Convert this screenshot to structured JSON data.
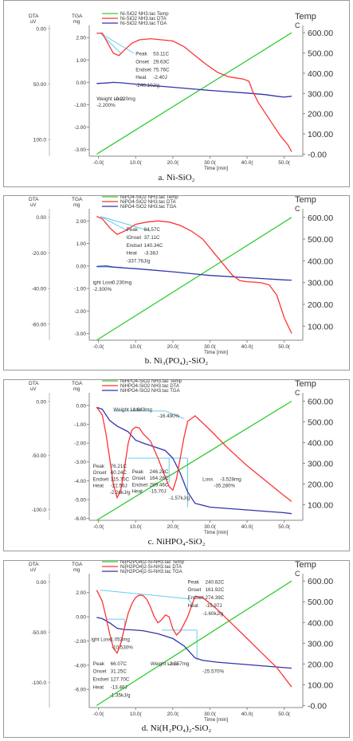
{
  "chart_data": [
    {
      "type": "line",
      "caption": "a. Ni-SiO₂",
      "labels": {
        "dta": "DTA",
        "dta_unit": "uV",
        "tga": "TGA",
        "tga_unit": "mg",
        "temp": "Temp",
        "temp_unit": "C",
        "xlabel": "Time [min]"
      },
      "legend": [
        "Ni-SiO2 NH3.tac Temp",
        "Ni-SiO2 NH3.tac DTA",
        "Ni-SiO2 NH3.tac TGA"
      ],
      "colors": {
        "temp": "#33cc33",
        "dta": "#ff3333",
        "tga": "#3333aa",
        "annot": "#66ccee"
      },
      "x_ticks": [
        "-0.0(",
        "10.0(",
        "20.0(",
        "30.0(",
        "40.0(",
        "50.0("
      ],
      "x_range": [
        -2.5,
        55
      ],
      "tga_ticks": [
        "2.00",
        "1.00",
        "0.00",
        "-1.00",
        "-2.00",
        "-3.00"
      ],
      "tga_range": [
        -3.3,
        2.4
      ],
      "dta_ticks": [
        "0.00",
        "50.00",
        "100.0"
      ],
      "dta_range": [
        0,
        115
      ],
      "temp_ticks": [
        "600.00",
        "500.00",
        "400.00",
        "300.00",
        "200.00",
        "100.00",
        "-0.00"
      ],
      "temp_range": [
        -10,
        620
      ],
      "temp": {
        "x": [
          -0.5,
          52
        ],
        "y": [
          0,
          600
        ]
      },
      "dta": {
        "x": [
          -0.5,
          1,
          2.5,
          4,
          5.5,
          7,
          9,
          11,
          14,
          17,
          20,
          23,
          26,
          29,
          32,
          35,
          37,
          39,
          40.5,
          41.5,
          43,
          45,
          47,
          49,
          51,
          52
        ],
        "y": [
          2.2,
          2.2,
          1.75,
          1.3,
          1.2,
          1.45,
          1.75,
          1.9,
          1.95,
          1.9,
          1.85,
          1.6,
          1.2,
          0.8,
          0.45,
          0.25,
          0.2,
          0.15,
          0.05,
          -0.4,
          -0.9,
          -1.4,
          -1.9,
          -2.4,
          -2.8,
          -3.1
        ]
      },
      "tga": {
        "x": [
          -0.5,
          2,
          4,
          6,
          10,
          20,
          30,
          40,
          45,
          48,
          50,
          52
        ],
        "y": [
          -0.05,
          -0.03,
          0.0,
          -0.02,
          -0.08,
          -0.22,
          -0.36,
          -0.48,
          -0.55,
          -0.62,
          -0.66,
          -0.62
        ]
      },
      "annot_lines": [
        {
          "x1": 0.5,
          "y1": 2.2,
          "x2": 6,
          "y2": 1.3
        },
        {
          "x1": 0.5,
          "y1": 2.2,
          "x2": 9.5,
          "y2": 1.3
        }
      ],
      "annotations": [
        {
          "label": "Peak",
          "value": "53.11C",
          "x": 10,
          "y": 1.2
        },
        {
          "label": "Onset",
          "value": "29.63C",
          "x": 10,
          "y": 0.85
        },
        {
          "label": "Endset",
          "value": "75.76C",
          "x": 10,
          "y": 0.5
        },
        {
          "label": "Heat",
          "value": "-2.40J",
          "x": 10,
          "y": 0.15
        },
        {
          "label": "",
          "value": "-240.10J/g",
          "x": 10,
          "y": -0.2
        },
        {
          "label": "Weight Loss",
          "value": "-0.220mg",
          "x": -0.5,
          "y": -0.8
        },
        {
          "label": "",
          "value": "-2.200%",
          "x": -0.5,
          "y": -1.1
        }
      ]
    },
    {
      "type": "line",
      "caption": "b. Ni₃(PO₄)₂-SiO₂",
      "labels": {
        "dta": "DTA",
        "dta_unit": "uV",
        "tga": "TGA",
        "tga_unit": "mg",
        "temp": "Temp",
        "temp_unit": "C",
        "xlabel": "Time [min]"
      },
      "legend": [
        "NiPO4-SiO2 NH3.tac Temp",
        "NiPO4-SiO2 NH3.tac DTA",
        "NiPO4-SiO2 NH3.tac TGA"
      ],
      "colors": {
        "temp": "#33cc33",
        "dta": "#ff3333",
        "tga": "#3333aa",
        "annot": "#66ccee"
      },
      "x_ticks": [
        "-0.0(",
        "10.0(",
        "20.0(",
        "30.0(",
        "40.0(",
        "50.0("
      ],
      "x_range": [
        -2.5,
        55
      ],
      "tga_ticks": [
        "2.00",
        "1.00",
        "0.00",
        "-1.00",
        "-2.00",
        "-3.00"
      ],
      "tga_range": [
        -3.3,
        2.4
      ],
      "dta_ticks": [
        "0.00",
        "-20.00",
        "-40.00",
        "-60.00"
      ],
      "dta_range": [
        -69,
        3
      ],
      "temp_ticks": [
        "600.00",
        "500.00",
        "400.00",
        "300.00",
        "200.00",
        "100.00"
      ],
      "temp_range": [
        35,
        625
      ],
      "temp": {
        "x": [
          -0.5,
          52
        ],
        "y": [
          35,
          600
        ]
      },
      "dta": {
        "x": [
          -0.5,
          1,
          3,
          5,
          7,
          10,
          13,
          16,
          19,
          22,
          25,
          28,
          31,
          34,
          36,
          38,
          40,
          42,
          44,
          46,
          48,
          50,
          52
        ],
        "y": [
          2.2,
          2.1,
          1.7,
          1.4,
          1.55,
          1.85,
          1.95,
          2.0,
          1.95,
          1.8,
          1.55,
          1.2,
          0.6,
          0.0,
          -0.4,
          -0.65,
          -0.7,
          -0.72,
          -0.75,
          -0.85,
          -1.3,
          -2.3,
          -3.0
        ]
      },
      "tga": {
        "x": [
          -0.5,
          2,
          4,
          6,
          10,
          20,
          30,
          40,
          45,
          50,
          52
        ],
        "y": [
          -0.02,
          0.0,
          -0.05,
          -0.08,
          -0.12,
          -0.26,
          -0.42,
          -0.52,
          -0.57,
          -0.62,
          -0.63
        ]
      },
      "annot_lines": [
        {
          "x1": 0.5,
          "y1": 2.2,
          "x2": 8,
          "y2": 1.55
        },
        {
          "x1": 0.5,
          "y1": 2.2,
          "x2": 14,
          "y2": 1.55
        },
        {
          "x1": -0.5,
          "y1": -0.05,
          "x2": 6.5,
          "y2": -0.05
        }
      ],
      "annotations": [
        {
          "label": "Peak",
          "value": "84.57C",
          "x": 7.5,
          "y": 1.55
        },
        {
          "label": "IOnset",
          "value": "37.11C",
          "x": 7.5,
          "y": 1.2
        },
        {
          "label": "Endset",
          "value": "140.34C",
          "x": 7.5,
          "y": 0.85
        },
        {
          "label": "Heat",
          "value": "-3.38J",
          "x": 7.5,
          "y": 0.5
        },
        {
          "label": "",
          "value": "-337.76J/g",
          "x": 7.5,
          "y": 0.15
        },
        {
          "label": "ight Loss",
          "value": "-0.230mg",
          "x": -1.5,
          "y": -0.8
        },
        {
          "label": "",
          "value": "-2.300%",
          "x": -1.5,
          "y": -1.1
        }
      ]
    },
    {
      "type": "line",
      "caption": "c. NiHPO₄-SiO₂",
      "labels": {
        "dta": "DTA",
        "dta_unit": "uV",
        "tga": "TGA",
        "tga_unit": "mg",
        "temp": "Temp",
        "temp_unit": "C",
        "xlabel": "Time [min]"
      },
      "legend": [
        "NiHPO4-SiO2 NH3.tac Temp",
        "NiHPO4-SiO2 NH3.tac DTA",
        "NiHPO4-SiO2 NH3.tac TGA"
      ],
      "colors": {
        "temp": "#33cc33",
        "dta": "#ff3333",
        "tga": "#3333aa",
        "annot": "#66ccee"
      },
      "x_ticks": [
        "-0.0(",
        "10.0(",
        "20.0(",
        "30.0(",
        "40.0(",
        "50.0("
      ],
      "x_range": [
        -2.5,
        55
      ],
      "tga_ticks": [
        "0.00",
        "-1.00",
        "-2.00",
        "-3.00",
        "-4.00",
        "-5.00",
        "-6.00"
      ],
      "tga_range": [
        -6.1,
        0.5
      ],
      "dta_ticks": [
        "0.00",
        "-50.00",
        "-100.0"
      ],
      "dta_range": [
        -110,
        5
      ],
      "temp_ticks": [
        "600.00",
        "500.00",
        "400.00",
        "300.00",
        "200.00",
        "100.00"
      ],
      "temp_range": [
        25,
        625
      ],
      "temp": {
        "x": [
          -0.5,
          52
        ],
        "y": [
          25,
          600
        ]
      },
      "dta": {
        "x": [
          -0.5,
          1,
          2,
          3,
          4,
          5,
          6,
          7,
          8,
          9,
          10,
          11,
          12,
          14,
          16,
          18,
          19,
          20,
          21,
          22,
          23,
          24,
          26,
          30,
          35,
          40,
          45,
          50,
          52
        ],
        "y": [
          -0.1,
          -0.5,
          -1.5,
          -2.8,
          -4.2,
          -4.9,
          -4.5,
          -3.3,
          -2.0,
          -1.3,
          -1.15,
          -1.2,
          -1.5,
          -1.9,
          -2.8,
          -3.8,
          -4.3,
          -4.5,
          -3.9,
          -2.8,
          -1.7,
          -0.85,
          -0.55,
          -1.3,
          -2.3,
          -3.2,
          -4.0,
          -4.8,
          -5.1
        ]
      },
      "tga": {
        "x": [
          -0.5,
          1,
          3,
          5,
          7,
          8,
          10,
          12,
          15,
          18,
          20,
          22,
          24,
          26,
          30,
          40,
          50,
          52
        ],
        "y": [
          -0.1,
          -0.2,
          -0.8,
          -1.1,
          -1.3,
          -1.4,
          -1.85,
          -2.0,
          -2.2,
          -2.4,
          -2.8,
          -3.6,
          -4.6,
          -5.2,
          -5.4,
          -5.55,
          -5.7,
          -5.75
        ]
      },
      "annot_lines": [
        {
          "x1": 4,
          "y1": -0.3,
          "x2": 18,
          "y2": -0.3
        },
        {
          "x1": 18,
          "y1": -0.3,
          "x2": 23,
          "y2": -0.7
        },
        {
          "x1": 8,
          "y1": -2.8,
          "x2": 24,
          "y2": -2.8
        },
        {
          "x1": 24,
          "y1": -2.8,
          "x2": 24,
          "y2": -5.4
        },
        {
          "x1": 19,
          "y1": -2.8,
          "x2": 19,
          "y2": -4.1
        }
      ],
      "annotations": [
        {
          "label": "Weight Loss",
          "value": "-1.649mg",
          "x": 4,
          "y": -0.3
        },
        {
          "label": "",
          "value": "-16.490%",
          "x": 16,
          "y": -0.65
        },
        {
          "label": "Peak",
          "value": "76.21C",
          "x": -1.5,
          "y": -3.3
        },
        {
          "label": "Onset",
          "value": "40.24C",
          "x": -1.5,
          "y": -3.65
        },
        {
          "label": "Endset",
          "value": "115.70C",
          "x": -1.5,
          "y": -4.0
        },
        {
          "label": "Heat",
          "value": "-22.56J",
          "x": -1.5,
          "y": -4.35
        },
        {
          "label": "",
          "value": "-2.26kJ/g",
          "x": 3,
          "y": -4.7
        },
        {
          "label": "Peak",
          "value": "246.28C",
          "x": 9,
          "y": -3.6
        },
        {
          "label": "Onset",
          "value": "164.26C",
          "x": 9,
          "y": -3.95
        },
        {
          "label": "Endset",
          "value": "289.46C",
          "x": 9,
          "y": -4.3
        },
        {
          "label": "Heat",
          "value": "-15.70J",
          "x": 9,
          "y": -4.65
        },
        {
          "label": "",
          "value": "-1.57kJ/g",
          "x": 19,
          "y": -5.0
        },
        {
          "label": "Loss",
          "value": "-3.528mg",
          "x": 28,
          "y": -4.0
        },
        {
          "label": "",
          "value": "-35.280%",
          "x": 31,
          "y": -4.35
        }
      ]
    },
    {
      "type": "line",
      "caption": "d. Ni(H₂PO₄)₂-SiO₂",
      "labels": {
        "dta": "DTA",
        "dta_unit": "uV",
        "tga": "TGA",
        "tga_unit": "mg",
        "temp": "Temp",
        "temp_unit": "C",
        "xlabel": "Time [min]"
      },
      "legend": [
        "Ni(H2PO4)2-Si-NH3.tac Temp",
        "Ni(H2PO4)2-Si-NH3.tac DTA",
        "Ni(H2PO4)2-Si-NH3.tac TGA"
      ],
      "colors": {
        "temp": "#33cc33",
        "dta": "#ff3333",
        "tga": "#3333aa",
        "annot": "#66ccee"
      },
      "x_ticks": [
        "-0.0(",
        "10.0(",
        "20.0(",
        "30.0(",
        "40.0(",
        "50.0("
      ],
      "x_range": [
        -2.5,
        55
      ],
      "tga_ticks": [
        "2.00",
        "0.00",
        "-2.00",
        "-4.00",
        "-6.00"
      ],
      "tga_range": [
        -7.5,
        3.3
      ],
      "dta_ticks": [
        "0.00",
        "-50.00",
        "-100.0"
      ],
      "dta_range": [
        -125,
        5
      ],
      "temp_ticks": [
        "600.00",
        "500.00",
        "400.00",
        "300.00",
        "200.00",
        "100.00",
        "-0.00"
      ],
      "temp_range": [
        -10,
        620
      ],
      "temp": {
        "x": [
          -0.5,
          52
        ],
        "y": [
          0,
          600
        ]
      },
      "dta": {
        "x": [
          -0.5,
          1,
          2,
          3,
          4,
          5,
          6,
          7,
          8,
          9,
          10,
          11,
          12,
          13,
          14,
          15,
          16,
          17,
          18,
          19,
          20,
          21,
          22,
          24,
          26,
          28,
          32,
          36,
          40,
          44,
          48,
          52
        ],
        "y": [
          2.2,
          1.3,
          0.0,
          -1.4,
          -2.6,
          -3.0,
          -2.2,
          -0.9,
          0.3,
          1.1,
          1.6,
          1.8,
          1.75,
          1.45,
          0.8,
          0.0,
          -0.5,
          -0.25,
          0.15,
          0.0,
          -1.0,
          -1.5,
          -1.2,
          0.0,
          1.7,
          1.6,
          0.6,
          -0.6,
          -1.8,
          -3.0,
          -4.2,
          -5.8
        ]
      },
      "tga": {
        "x": [
          -0.5,
          1,
          3,
          5,
          7,
          9,
          12,
          16,
          20,
          23,
          26,
          28,
          32,
          40,
          50,
          52
        ],
        "y": [
          -0.05,
          -0.15,
          -0.5,
          -0.95,
          -1.05,
          -1.08,
          -1.15,
          -1.4,
          -1.8,
          -2.4,
          -3.4,
          -3.6,
          -3.75,
          -3.95,
          -4.2,
          -4.25
        ]
      },
      "annot_lines": [
        {
          "x1": 0.5,
          "y1": 2.2,
          "x2": 24,
          "y2": 1.5
        },
        {
          "x1": 24,
          "y1": 1.5,
          "x2": 25.5,
          "y2": 1.0
        },
        {
          "x1": 2,
          "y1": -0.2,
          "x2": 7,
          "y2": -0.2
        },
        {
          "x1": 7,
          "y1": -0.2,
          "x2": 7,
          "y2": -1.1
        },
        {
          "x1": 17,
          "y1": -1.1,
          "x2": 26.5,
          "y2": -1.1
        },
        {
          "x1": 26.5,
          "y1": -1.1,
          "x2": 26.5,
          "y2": -3.6
        }
      ],
      "annotations": [
        {
          "label": "Peak",
          "value": "240.82C",
          "x": 24,
          "y": 2.75
        },
        {
          "label": "Onset",
          "value": "161.92C",
          "x": 24,
          "y": 2.1
        },
        {
          "label": "Endset",
          "value": "274.39C",
          "x": 24,
          "y": 1.45
        },
        {
          "label": "Heat",
          "value": "-15.97J",
          "x": 24,
          "y": 0.8
        },
        {
          "label": "",
          "value": "-1.60kJ/g",
          "x": 28,
          "y": 0.15
        },
        {
          "label": "ight Loss",
          "value": "-1.053mg",
          "x": -2,
          "y": -2.0
        },
        {
          "label": "",
          "value": "-10.530%",
          "x": 3.5,
          "y": -2.65
        },
        {
          "label": "Peak",
          "value": "66.07C",
          "x": -1.5,
          "y": -4.0
        },
        {
          "label": "Onset",
          "value": "31.25C",
          "x": -1.5,
          "y": -4.65
        },
        {
          "label": "Endset",
          "value": "127.70C",
          "x": -1.5,
          "y": -5.3
        },
        {
          "label": "Heat",
          "value": "-13.46J",
          "x": -1.5,
          "y": -5.95
        },
        {
          "label": "",
          "value": "-1.35kJ/g",
          "x": 3,
          "y": -6.6
        },
        {
          "label": "Weight Loss",
          "value": "-2.557mg",
          "x": 14,
          "y": -4.0
        },
        {
          "label": "",
          "value": "-25.570%",
          "x": 28,
          "y": -4.65
        }
      ]
    }
  ]
}
